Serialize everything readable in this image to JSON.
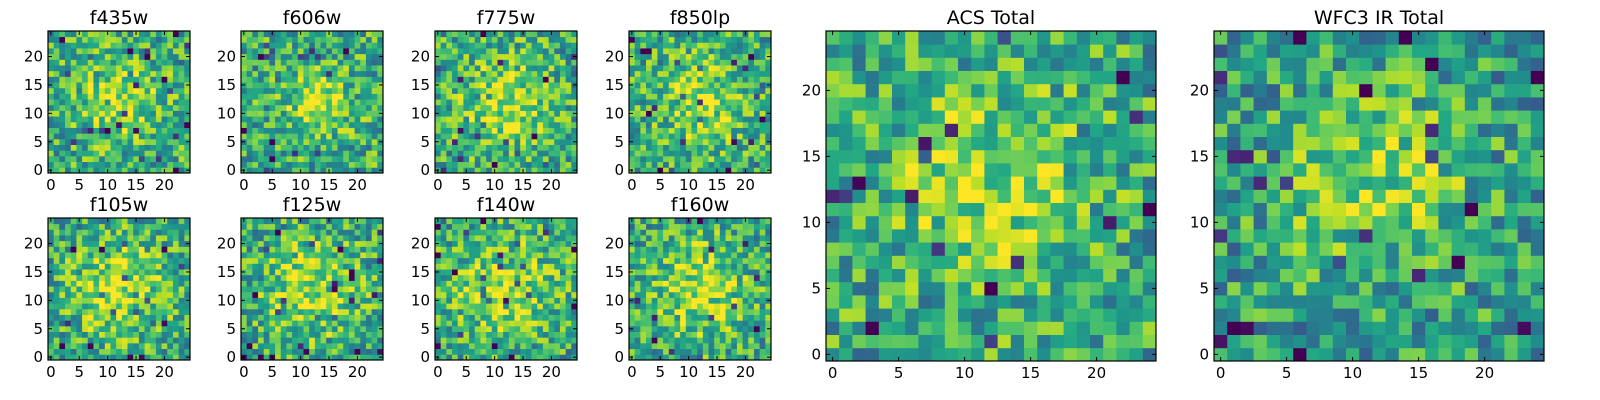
{
  "chart_data": [
    {
      "type": "heatmap",
      "title": "f435w",
      "xticks": [
        "0",
        "5",
        "10",
        "15",
        "20"
      ],
      "yticks": [
        "0",
        "5",
        "10",
        "15",
        "20"
      ],
      "grid": false,
      "colormap": "viridis",
      "size": 25,
      "seed": 11,
      "blob": [
        12,
        12,
        5
      ],
      "mean": 0.62
    },
    {
      "type": "heatmap",
      "title": "f606w",
      "xticks": [
        "0",
        "5",
        "10",
        "15",
        "20"
      ],
      "yticks": [
        "0",
        "5",
        "10",
        "15",
        "20"
      ],
      "grid": false,
      "colormap": "viridis",
      "size": 25,
      "seed": 22,
      "blob": [
        13,
        12,
        4
      ],
      "mean": 0.62
    },
    {
      "type": "heatmap",
      "title": "f775w",
      "xticks": [
        "0",
        "5",
        "10",
        "15",
        "20"
      ],
      "yticks": [
        "0",
        "5",
        "10",
        "15",
        "20"
      ],
      "grid": false,
      "colormap": "viridis",
      "size": 25,
      "seed": 33,
      "blob": [
        12,
        12,
        5
      ],
      "mean": 0.62
    },
    {
      "type": "heatmap",
      "title": "f850lp",
      "xticks": [
        "0",
        "5",
        "10",
        "15",
        "20"
      ],
      "yticks": [
        "0",
        "5",
        "10",
        "15",
        "20"
      ],
      "grid": false,
      "colormap": "viridis",
      "size": 25,
      "seed": 44,
      "blob": [
        12,
        12,
        5
      ],
      "mean": 0.62
    },
    {
      "type": "heatmap",
      "title": "f105w",
      "xticks": [
        "0",
        "5",
        "10",
        "15",
        "20"
      ],
      "yticks": [
        "0",
        "5",
        "10",
        "15",
        "20"
      ],
      "grid": false,
      "colormap": "viridis",
      "size": 25,
      "seed": 55,
      "blob": [
        12,
        12,
        6
      ],
      "mean": 0.6
    },
    {
      "type": "heatmap",
      "title": "f125w",
      "xticks": [
        "0",
        "5",
        "10",
        "15",
        "20"
      ],
      "yticks": [
        "0",
        "5",
        "10",
        "15",
        "20"
      ],
      "grid": false,
      "colormap": "viridis",
      "size": 25,
      "seed": 66,
      "blob": [
        12,
        12,
        6
      ],
      "mean": 0.6
    },
    {
      "type": "heatmap",
      "title": "f140w",
      "xticks": [
        "0",
        "5",
        "10",
        "15",
        "20"
      ],
      "yticks": [
        "0",
        "5",
        "10",
        "15",
        "20"
      ],
      "grid": false,
      "colormap": "viridis",
      "size": 25,
      "seed": 77,
      "blob": [
        12,
        12,
        6
      ],
      "mean": 0.6
    },
    {
      "type": "heatmap",
      "title": "f160w",
      "xticks": [
        "0",
        "5",
        "10",
        "15",
        "20"
      ],
      "yticks": [
        "0",
        "5",
        "10",
        "15",
        "20"
      ],
      "grid": false,
      "colormap": "viridis",
      "size": 25,
      "seed": 88,
      "blob": [
        12,
        12,
        6
      ],
      "mean": 0.6
    },
    {
      "type": "heatmap",
      "title": "ACS Total",
      "xticks": [
        "0",
        "5",
        "10",
        "15",
        "20"
      ],
      "yticks": [
        "0",
        "5",
        "10",
        "15",
        "20"
      ],
      "grid": false,
      "colormap": "viridis",
      "size": 25,
      "seed": 99,
      "blob": [
        12,
        13,
        5
      ],
      "mean": 0.6
    },
    {
      "type": "heatmap",
      "title": "WFC3 IR Total",
      "xticks": [
        "0",
        "5",
        "10",
        "15",
        "20"
      ],
      "yticks": [
        "0",
        "5",
        "10",
        "15",
        "20"
      ],
      "grid": false,
      "colormap": "viridis",
      "size": 25,
      "seed": 123,
      "blob": [
        12,
        13,
        5
      ],
      "mean": 0.55
    }
  ]
}
